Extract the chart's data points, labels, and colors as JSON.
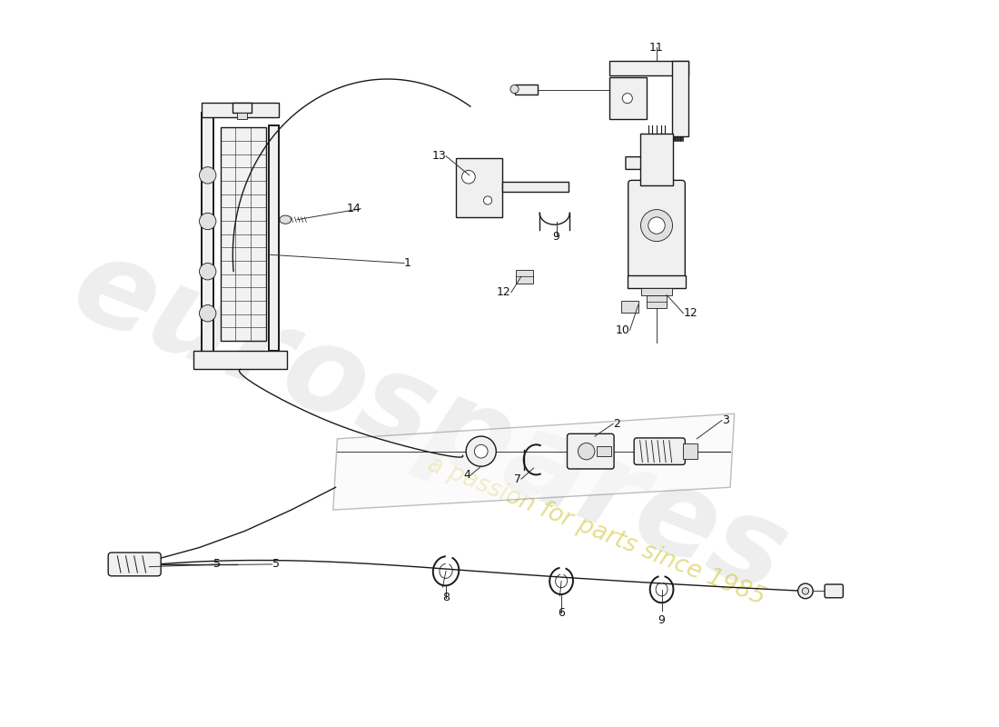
{
  "background_color": "#ffffff",
  "line_color": "#1a1a1a",
  "watermark_text1": "eurospares",
  "watermark_text2": "a passion for parts since 1985",
  "watermark_color1": "#c8c8c8",
  "watermark_color2": "#d4c840",
  "fig_width": 11.0,
  "fig_height": 8.0,
  "dpi": 100,
  "lw": 1.0,
  "lw_thin": 0.6,
  "lw_thick": 1.4,
  "pedal_face_color": "#f2f2f2",
  "part_fill": "#f0f0f0",
  "part_fill_dark": "#e0e0e0"
}
